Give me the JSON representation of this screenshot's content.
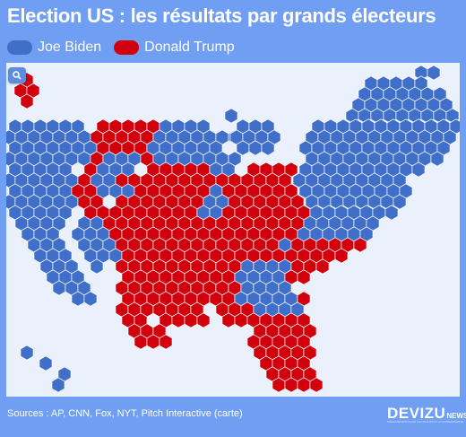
{
  "title": "Election US : les résultats par grands électeurs",
  "legend": [
    {
      "label": "Joe Biden",
      "color": "#3f6fc9"
    },
    {
      "label": "Donald Trump",
      "color": "#d1000c"
    }
  ],
  "map": {
    "background": "#eaf1fd",
    "zoom_icon": "magnifier-icon"
  },
  "footer": {
    "sources": "Sources : AP, CNN, Fox, NYT, Pitch Interactive (carte)"
  },
  "brand": {
    "name": "DEVIZU",
    "suffix": "NEWS",
    "tagline": "VISUALISATION POUR L'ACTUALITÉ ET LA CONNAISSANCE"
  }
}
